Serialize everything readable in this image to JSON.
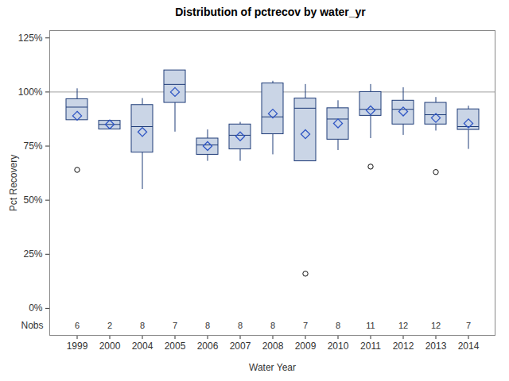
{
  "chart_data": {
    "type": "box",
    "title": "Distribution of pctrecov by water_yr",
    "x_label": "Water Year",
    "y_label": "Pct Recovery",
    "categories": [
      "1999",
      "2000",
      "2004",
      "2005",
      "2006",
      "2007",
      "2008",
      "2009",
      "2010",
      "2011",
      "2012",
      "2013",
      "2014"
    ],
    "whisker_low": [
      87,
      82.7,
      55,
      81.5,
      68,
      68,
      71,
      68,
      73,
      78.5,
      80,
      82,
      73.5
    ],
    "q1": [
      87,
      82.7,
      72,
      95,
      71,
      73.5,
      80.5,
      68,
      78,
      89,
      85,
      85,
      82.5
    ],
    "median": [
      93,
      85,
      84,
      103.5,
      75.5,
      80,
      88.5,
      92.5,
      87.5,
      92,
      92,
      89.5,
      84
    ],
    "q3": [
      96.7,
      86.7,
      94,
      110,
      78.5,
      85,
      104,
      97,
      92.5,
      100,
      96,
      95,
      92
    ],
    "whisker_high": [
      101.5,
      86.7,
      97,
      110,
      82.5,
      86,
      105,
      103.5,
      96,
      103.5,
      102,
      97.5,
      93.5
    ],
    "mean": [
      89,
      85,
      81.5,
      100,
      75,
      79.5,
      90,
      80.5,
      85.5,
      91.5,
      91,
      88,
      85.5
    ],
    "outliers": [
      [
        64
      ],
      [],
      [],
      [],
      [],
      [],
      [],
      [
        16
      ],
      [],
      [
        65.5
      ],
      [],
      [
        63
      ],
      []
    ],
    "nobs_label": "Nobs",
    "nobs": [
      6,
      2,
      8,
      7,
      8,
      8,
      8,
      7,
      8,
      11,
      12,
      12,
      7
    ],
    "reference_line": 100,
    "color": "#cad5e6",
    "marker": "diamond",
    "ylim": [
      -12.5,
      128.4
    ],
    "yticks": [
      {
        "value": 0,
        "label": "0%"
      },
      {
        "value": 25,
        "label": "25%"
      },
      {
        "value": 50,
        "label": "50%"
      },
      {
        "value": 75,
        "label": "75%"
      },
      {
        "value": 100,
        "label": "100%"
      },
      {
        "value": 125,
        "label": "125%"
      }
    ]
  }
}
